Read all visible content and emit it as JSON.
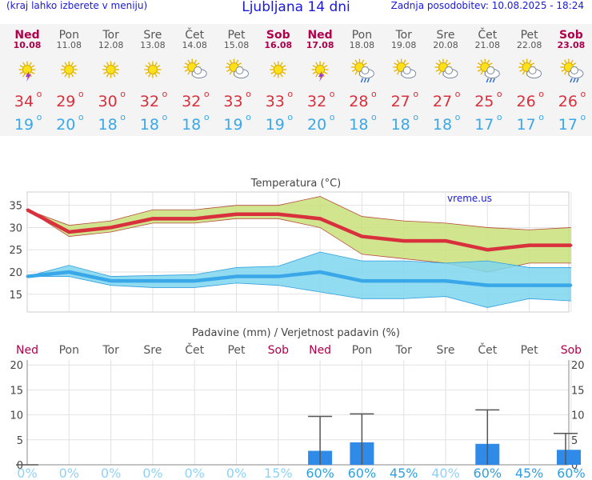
{
  "header": {
    "menu_note": "(kraj lahko izberete v meniju)",
    "title": "Ljubljana 14 dni",
    "updated": "Zadnja posodobitev: 10.08.2025 - 18:24"
  },
  "days": [
    {
      "name": "Ned",
      "date": "10.08",
      "icon": "sun-thunder-icon",
      "tmax": "34",
      "tmin": "19",
      "weekend": true
    },
    {
      "name": "Pon",
      "date": "11.08",
      "icon": "sun-icon",
      "tmax": "29",
      "tmin": "20",
      "weekend": false
    },
    {
      "name": "Tor",
      "date": "12.08",
      "icon": "sun-icon",
      "tmax": "30",
      "tmin": "18",
      "weekend": false
    },
    {
      "name": "Sre",
      "date": "13.08",
      "icon": "sun-icon",
      "tmax": "32",
      "tmin": "18",
      "weekend": false
    },
    {
      "name": "Čet",
      "date": "14.08",
      "icon": "sun-cloud-icon",
      "tmax": "32",
      "tmin": "18",
      "weekend": false
    },
    {
      "name": "Pet",
      "date": "15.08",
      "icon": "sun-cloud-icon",
      "tmax": "33",
      "tmin": "19",
      "weekend": false
    },
    {
      "name": "Sob",
      "date": "16.08",
      "icon": "sun-icon",
      "tmax": "33",
      "tmin": "19",
      "weekend": true
    },
    {
      "name": "Ned",
      "date": "17.08",
      "icon": "sun-thunder-icon",
      "tmax": "32",
      "tmin": "20",
      "weekend": true
    },
    {
      "name": "Pon",
      "date": "18.08",
      "icon": "sun-cloud-rain-icon",
      "tmax": "28",
      "tmin": "18",
      "weekend": false
    },
    {
      "name": "Tor",
      "date": "19.08",
      "icon": "sun-cloud-icon",
      "tmax": "27",
      "tmin": "18",
      "weekend": false
    },
    {
      "name": "Sre",
      "date": "20.08",
      "icon": "sun-cloud-icon",
      "tmax": "27",
      "tmin": "18",
      "weekend": false
    },
    {
      "name": "Čet",
      "date": "21.08",
      "icon": "sun-cloud-rain-icon",
      "tmax": "25",
      "tmin": "17",
      "weekend": false
    },
    {
      "name": "Pet",
      "date": "22.08",
      "icon": "sun-cloud-icon",
      "tmax": "26",
      "tmin": "17",
      "weekend": false
    },
    {
      "name": "Sob",
      "date": "23.08",
      "icon": "sun-cloud-rain-icon",
      "tmax": "26",
      "tmin": "17",
      "weekend": true
    }
  ],
  "degree_symbol": "o",
  "colors": {
    "max_temp": "#d8303c",
    "min_temp": "#3aa8e8",
    "weekend": "#b0004a",
    "max_band": "#c8e07a",
    "min_band": "#7fd6ee",
    "precip_bar": "#2f8ae8",
    "chance_text": "#2ea0e0",
    "chance_text_light": "#8fd2f6"
  },
  "chart_data": [
    {
      "type": "line",
      "title": "Temperatura (°C)",
      "watermark": "vreme.us",
      "x": [
        "Ned",
        "Pon",
        "Tor",
        "Sre",
        "Čet",
        "Pet",
        "Sob",
        "Ned",
        "Pon",
        "Tor",
        "Sre",
        "Čet",
        "Pet",
        "Sob"
      ],
      "ylim": [
        11,
        38
      ],
      "yticks": [
        15,
        20,
        25,
        30,
        35
      ],
      "grid": true,
      "series": [
        {
          "name": "max",
          "values": [
            34,
            29,
            30,
            32,
            32,
            33,
            33,
            32,
            28,
            27,
            27,
            25,
            26,
            26
          ],
          "band_low": [
            34,
            28,
            29,
            31,
            31,
            32,
            32,
            30,
            24,
            23,
            22,
            20,
            22,
            22
          ],
          "band_high": [
            34,
            30.5,
            31.5,
            34,
            34,
            35,
            35,
            37,
            32.5,
            31.5,
            31,
            30,
            29.5,
            30
          ]
        },
        {
          "name": "min",
          "values": [
            19,
            20,
            18,
            18,
            18,
            19,
            19,
            20,
            18,
            18,
            18,
            17,
            17,
            17
          ],
          "band_low": [
            19,
            19,
            17,
            16.5,
            16.5,
            17.5,
            17,
            15.5,
            14,
            14,
            14.5,
            12,
            14,
            13.5
          ],
          "band_high": [
            19,
            21.5,
            19,
            19.2,
            19.4,
            21,
            21.3,
            24.5,
            22.5,
            22.5,
            22,
            22.5,
            21,
            21
          ]
        }
      ]
    },
    {
      "type": "bar",
      "title": "Padavine (mm) / Verjetnost padavin (%)",
      "categories": [
        "Ned",
        "Pon",
        "Tor",
        "Sre",
        "Čet",
        "Pet",
        "Sob",
        "Ned",
        "Pon",
        "Tor",
        "Sre",
        "Čet",
        "Pet",
        "Sob"
      ],
      "values": [
        0,
        0,
        0,
        0,
        0,
        0,
        0,
        2.8,
        4.5,
        0,
        0,
        4.2,
        0,
        3
      ],
      "error_high": [
        0,
        0,
        0,
        0,
        0,
        0,
        0,
        9.7,
        10.2,
        0,
        0,
        11,
        0,
        6.3
      ],
      "probability": [
        "0%",
        "0%",
        "0%",
        "0%",
        "0%",
        "0%",
        "15%",
        "60%",
        "60%",
        "45%",
        "40%",
        "60%",
        "45%",
        "60%"
      ],
      "ylim": [
        0,
        21
      ],
      "yticks": [
        0,
        5,
        10,
        15,
        20
      ],
      "grid": true
    }
  ]
}
